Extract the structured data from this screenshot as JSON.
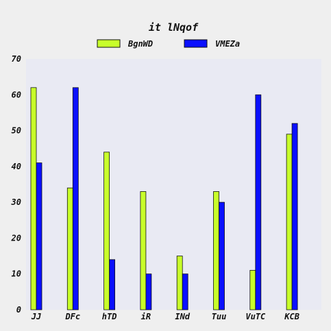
{
  "chart_data": {
    "type": "bar",
    "title": "it lNqof",
    "xlabel": "",
    "ylabel": "",
    "categories": [
      "JJ",
      "DFc",
      "hTD",
      "iR",
      "INd",
      "Tuu",
      "VuTC",
      "KCB"
    ],
    "series": [
      {
        "name": "BgnWD",
        "color": "#c8ff2a",
        "values": [
          62,
          34,
          44,
          33,
          15,
          33,
          11,
          49
        ]
      },
      {
        "name": "VMEZa",
        "color": "#0a10ff",
        "values": [
          41,
          62,
          14,
          10,
          10,
          30,
          60,
          52
        ]
      }
    ],
    "ylim": [
      0,
      70
    ],
    "yticks": [
      0,
      10,
      20,
      30,
      40,
      50,
      60,
      70
    ],
    "grid": false,
    "legend_position": "top-center",
    "plot_background": "#e9eaf3",
    "page_background": "#efefef",
    "edge_color": "#111111"
  }
}
